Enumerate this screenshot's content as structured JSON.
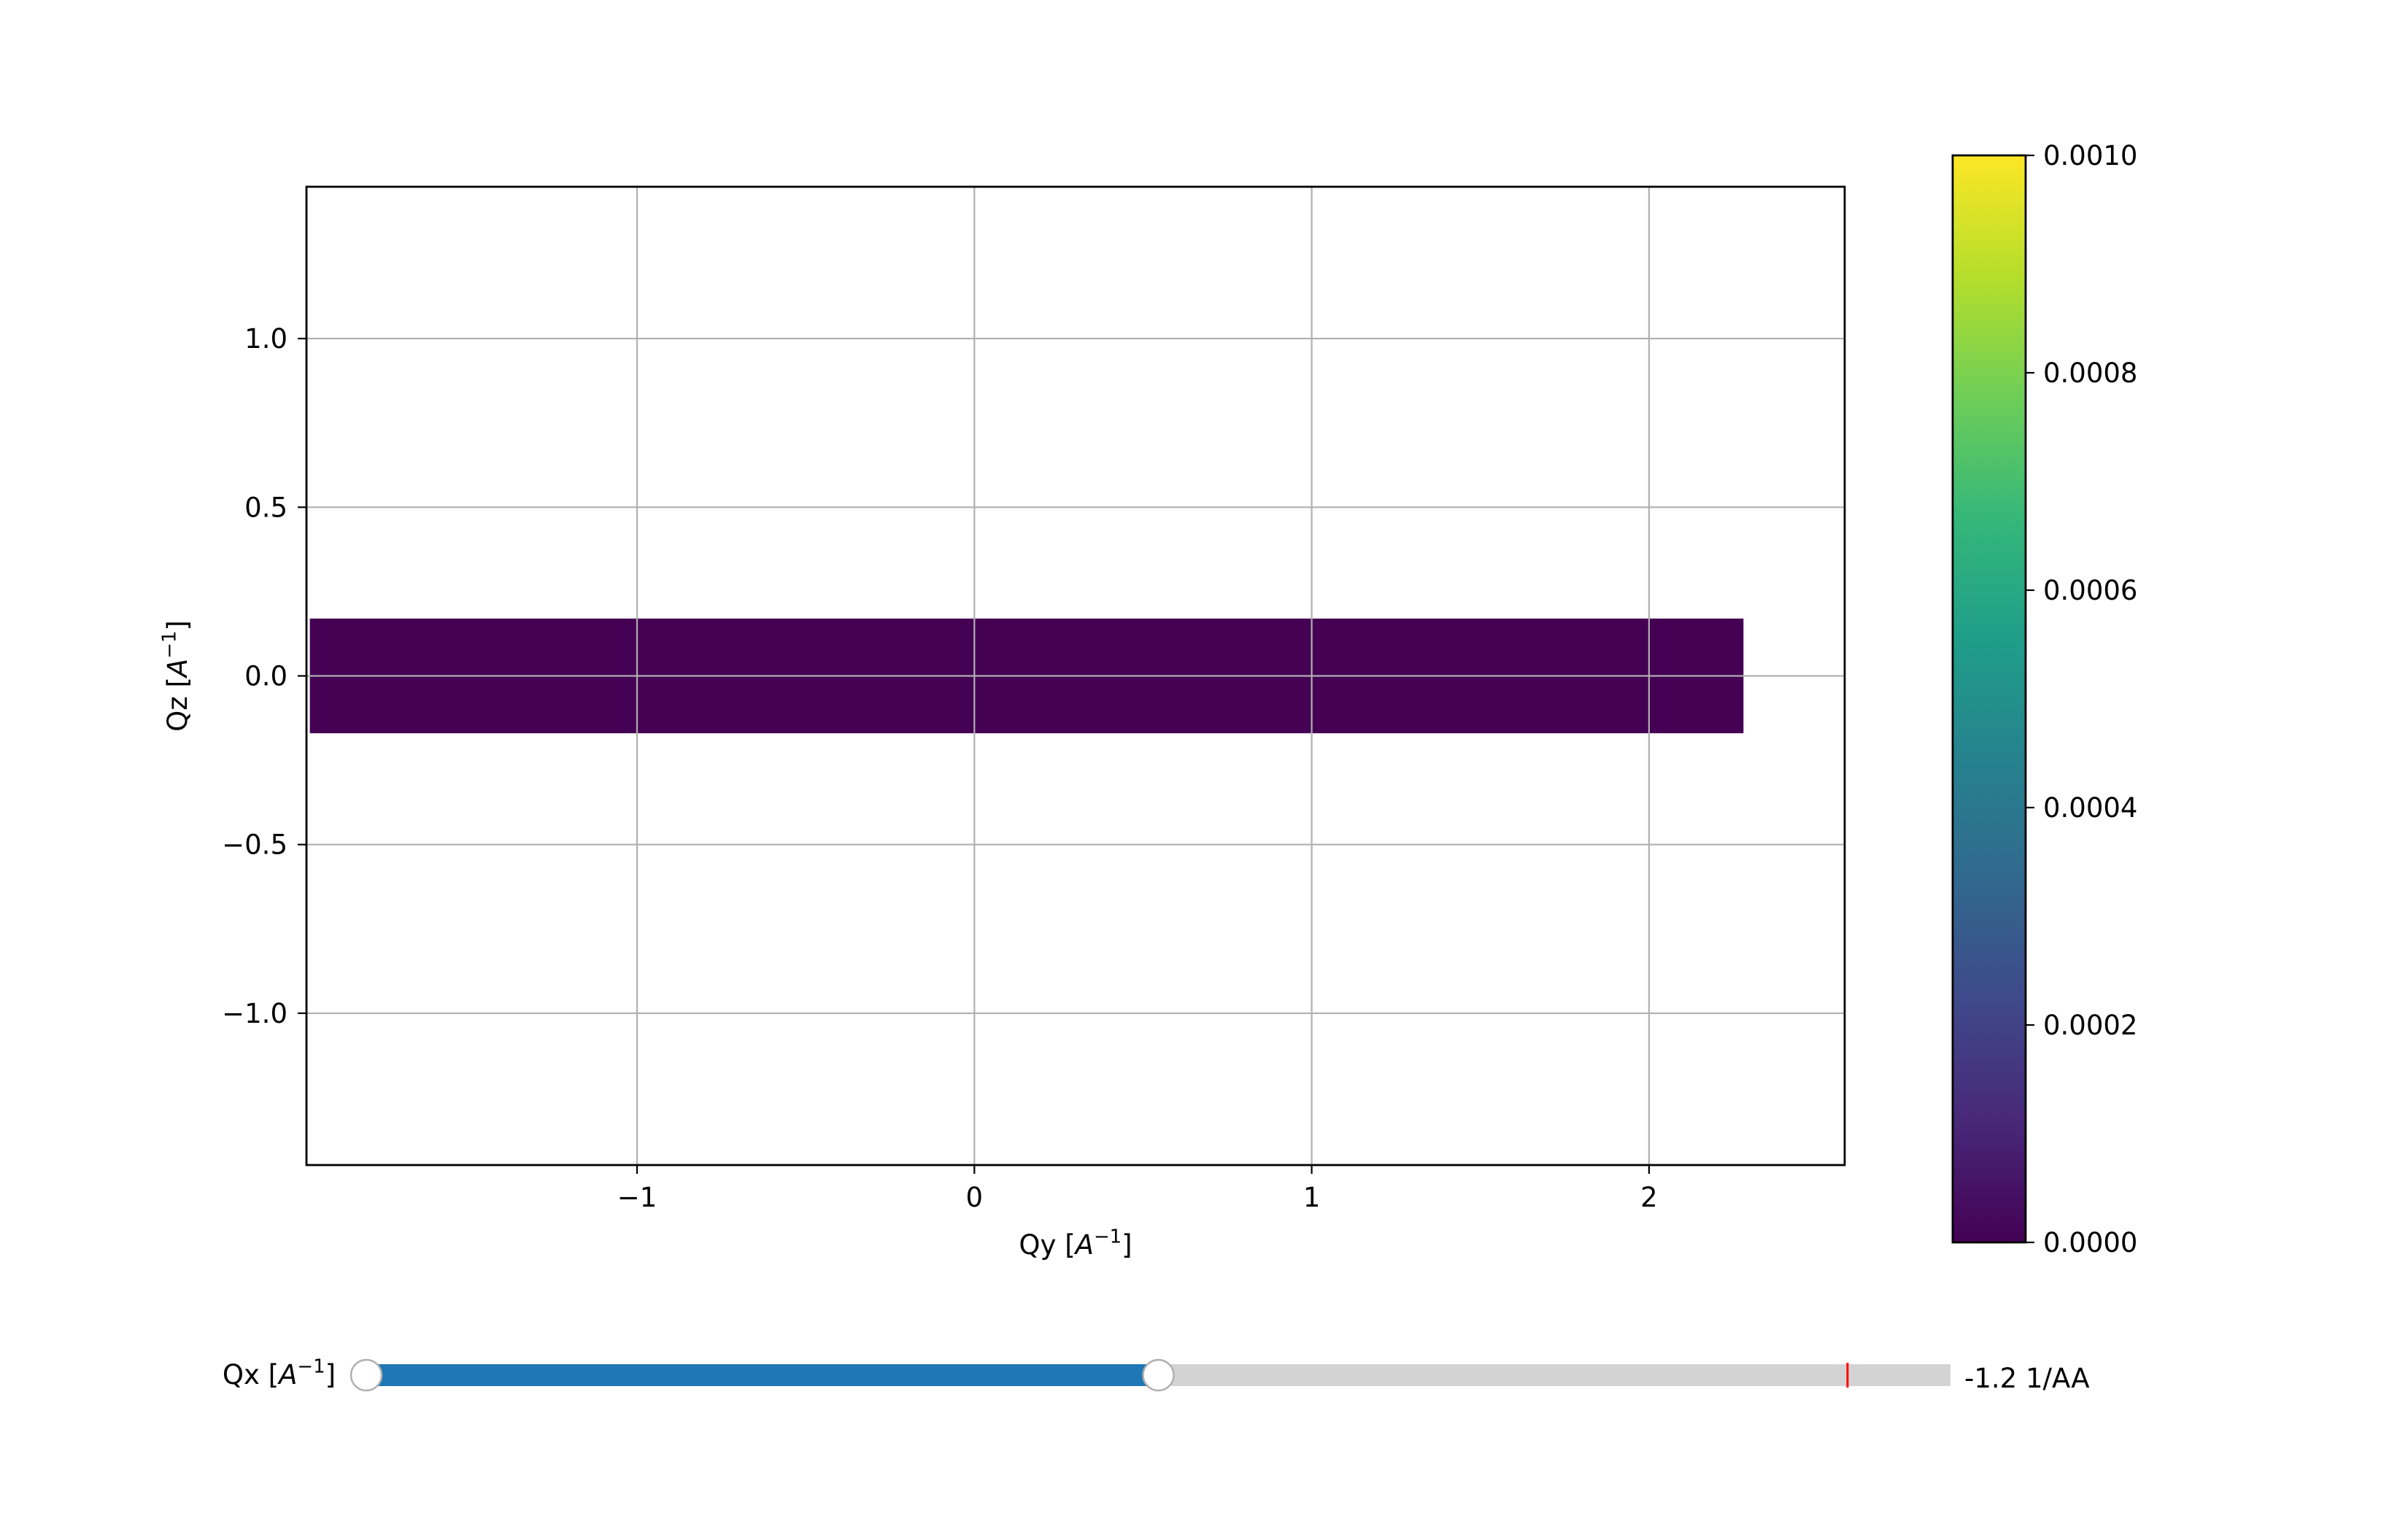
{
  "chart_data": {
    "type": "heatmap",
    "title": "",
    "xlabel": "Qy",
    "xlabel_unit_base": "A",
    "xlabel_unit_exp": "−1",
    "ylabel": "Qz",
    "ylabel_unit_base": "A",
    "ylabel_unit_exp": "−1",
    "xlim": [
      -1.98,
      2.58
    ],
    "ylim": [
      -1.45,
      1.45
    ],
    "xticks": [
      {
        "value": -1,
        "label": "−1"
      },
      {
        "value": 0,
        "label": "0"
      },
      {
        "value": 1,
        "label": "1"
      },
      {
        "value": 2,
        "label": "2"
      }
    ],
    "yticks": [
      {
        "value": 1.0,
        "label": "1.0"
      },
      {
        "value": 0.5,
        "label": "0.5"
      },
      {
        "value": 0.0,
        "label": "0.0"
      },
      {
        "value": -0.5,
        "label": "−0.5"
      },
      {
        "value": -1.0,
        "label": "−1.0"
      }
    ],
    "grid": true,
    "colormap": "viridis",
    "colorbar": {
      "range": [
        0.0,
        0.001
      ],
      "ticks": [
        {
          "value": 0.0,
          "label": "0.0000"
        },
        {
          "value": 0.0002,
          "label": "0.0002"
        },
        {
          "value": 0.0004,
          "label": "0.0004"
        },
        {
          "value": 0.0006,
          "label": "0.0006"
        },
        {
          "value": 0.0008,
          "label": "0.0008"
        },
        {
          "value": 0.001,
          "label": "0.0010"
        }
      ],
      "stops": [
        "#440154",
        "#482878",
        "#3e4989",
        "#31688e",
        "#26828e",
        "#1f9e89",
        "#35b779",
        "#6ece58",
        "#b5de2b",
        "#fde725"
      ]
    },
    "data_region": {
      "qy_range": [
        -1.97,
        2.28
      ],
      "qz_range": [
        -0.17,
        0.17
      ],
      "value": 0.0,
      "color": "#440154"
    }
  },
  "slider": {
    "label": "Qx",
    "label_unit_base": "A",
    "label_unit_exp": "−1",
    "value_text": "-1.2 1/AA",
    "range_low_fraction": 0.0,
    "range_high_fraction": 0.5,
    "marker_fraction": 0.935,
    "colors": {
      "fill": "#1f77b4",
      "track": "#d3d3d3",
      "marker": "#ff0000",
      "handle_border": "#b0b0b0"
    }
  }
}
